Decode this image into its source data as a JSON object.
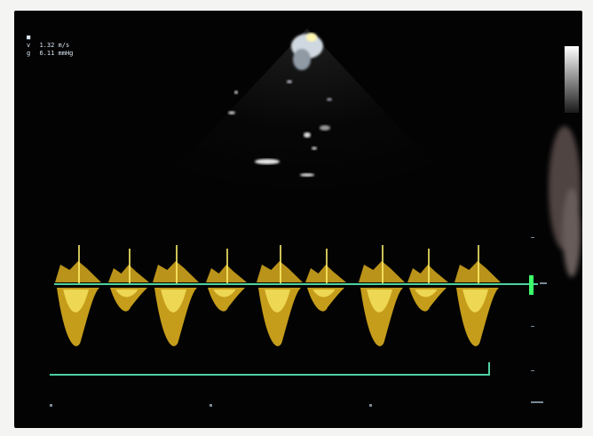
{
  "readout": {
    "lines": [
      {
        "symbol": "■",
        "value": ""
      },
      {
        "symbol": "v",
        "value": "1.32 m/s"
      },
      {
        "symbol": "g",
        "value": "6.11 mmHg"
      }
    ]
  },
  "colors": {
    "background": "#030303",
    "doppler_envelope": "#e8b820",
    "doppler_core": "#fff06a",
    "baseline": "#4fd0a0",
    "ecg_trace": "#4fd0a0",
    "zero_marker": "#3cff6a",
    "greyscale_bar_top": "#ffffff",
    "greyscale_bar_bottom": "#202020"
  }
}
